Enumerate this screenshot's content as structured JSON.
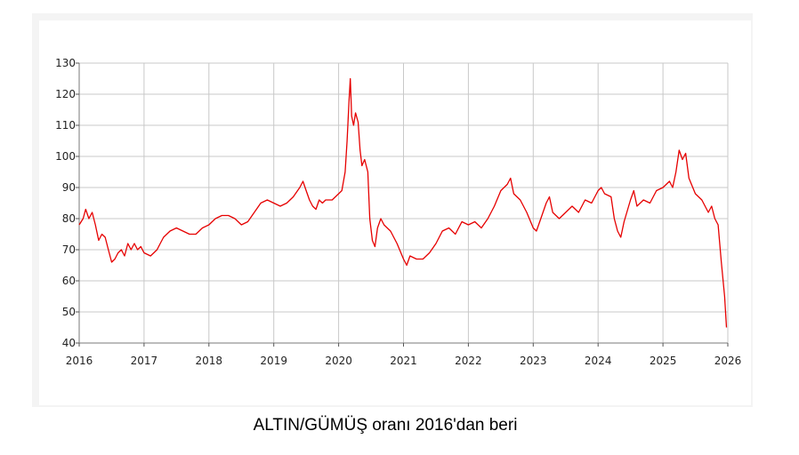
{
  "caption": "ALTIN/GÜMÜŞ oranı 2016'dan beri",
  "chart_data": {
    "type": "line",
    "title": "",
    "xlabel": "",
    "ylabel": "",
    "xlim": [
      2016,
      2026
    ],
    "ylim": [
      40,
      130
    ],
    "x_ticks": [
      2016,
      2017,
      2018,
      2019,
      2020,
      2021,
      2022,
      2023,
      2024,
      2025,
      2026
    ],
    "y_ticks": [
      40,
      50,
      60,
      70,
      80,
      90,
      100,
      110,
      120,
      130
    ],
    "grid": true,
    "line_color": "#e60000",
    "series": [
      {
        "name": "",
        "points": [
          [
            2016.0,
            78
          ],
          [
            2016.06,
            80
          ],
          [
            2016.1,
            83
          ],
          [
            2016.15,
            80
          ],
          [
            2016.2,
            82
          ],
          [
            2016.25,
            78
          ],
          [
            2016.3,
            73
          ],
          [
            2016.35,
            75
          ],
          [
            2016.4,
            74
          ],
          [
            2016.45,
            70
          ],
          [
            2016.5,
            66
          ],
          [
            2016.55,
            67
          ],
          [
            2016.6,
            69
          ],
          [
            2016.65,
            70
          ],
          [
            2016.7,
            68
          ],
          [
            2016.75,
            72
          ],
          [
            2016.8,
            70
          ],
          [
            2016.85,
            72
          ],
          [
            2016.9,
            70
          ],
          [
            2016.95,
            71
          ],
          [
            2017.0,
            69
          ],
          [
            2017.1,
            68
          ],
          [
            2017.2,
            70
          ],
          [
            2017.25,
            72
          ],
          [
            2017.3,
            74
          ],
          [
            2017.4,
            76
          ],
          [
            2017.5,
            77
          ],
          [
            2017.6,
            76
          ],
          [
            2017.7,
            75
          ],
          [
            2017.8,
            75
          ],
          [
            2017.9,
            77
          ],
          [
            2018.0,
            78
          ],
          [
            2018.1,
            80
          ],
          [
            2018.2,
            81
          ],
          [
            2018.3,
            81
          ],
          [
            2018.4,
            80
          ],
          [
            2018.5,
            78
          ],
          [
            2018.6,
            79
          ],
          [
            2018.7,
            82
          ],
          [
            2018.8,
            85
          ],
          [
            2018.9,
            86
          ],
          [
            2019.0,
            85
          ],
          [
            2019.1,
            84
          ],
          [
            2019.2,
            85
          ],
          [
            2019.3,
            87
          ],
          [
            2019.4,
            90
          ],
          [
            2019.45,
            92
          ],
          [
            2019.5,
            89
          ],
          [
            2019.55,
            86
          ],
          [
            2019.6,
            84
          ],
          [
            2019.65,
            83
          ],
          [
            2019.7,
            86
          ],
          [
            2019.75,
            85
          ],
          [
            2019.8,
            86
          ],
          [
            2019.9,
            86
          ],
          [
            2020.0,
            88
          ],
          [
            2020.05,
            89
          ],
          [
            2020.1,
            95
          ],
          [
            2020.13,
            105
          ],
          [
            2020.16,
            118
          ],
          [
            2020.18,
            125
          ],
          [
            2020.2,
            113
          ],
          [
            2020.23,
            110
          ],
          [
            2020.26,
            114
          ],
          [
            2020.3,
            111
          ],
          [
            2020.33,
            102
          ],
          [
            2020.36,
            97
          ],
          [
            2020.4,
            99
          ],
          [
            2020.45,
            95
          ],
          [
            2020.48,
            80
          ],
          [
            2020.52,
            73
          ],
          [
            2020.56,
            71
          ],
          [
            2020.6,
            77
          ],
          [
            2020.65,
            80
          ],
          [
            2020.7,
            78
          ],
          [
            2020.8,
            76
          ],
          [
            2020.9,
            72
          ],
          [
            2021.0,
            67
          ],
          [
            2021.05,
            65
          ],
          [
            2021.1,
            68
          ],
          [
            2021.2,
            67
          ],
          [
            2021.3,
            67
          ],
          [
            2021.4,
            69
          ],
          [
            2021.5,
            72
          ],
          [
            2021.6,
            76
          ],
          [
            2021.7,
            77
          ],
          [
            2021.8,
            75
          ],
          [
            2021.9,
            79
          ],
          [
            2022.0,
            78
          ],
          [
            2022.1,
            79
          ],
          [
            2022.2,
            77
          ],
          [
            2022.3,
            80
          ],
          [
            2022.4,
            84
          ],
          [
            2022.5,
            89
          ],
          [
            2022.6,
            91
          ],
          [
            2022.65,
            93
          ],
          [
            2022.7,
            88
          ],
          [
            2022.8,
            86
          ],
          [
            2022.9,
            82
          ],
          [
            2023.0,
            77
          ],
          [
            2023.05,
            76
          ],
          [
            2023.1,
            79
          ],
          [
            2023.2,
            85
          ],
          [
            2023.25,
            87
          ],
          [
            2023.3,
            82
          ],
          [
            2023.4,
            80
          ],
          [
            2023.5,
            82
          ],
          [
            2023.6,
            84
          ],
          [
            2023.7,
            82
          ],
          [
            2023.8,
            86
          ],
          [
            2023.9,
            85
          ],
          [
            2024.0,
            89
          ],
          [
            2024.05,
            90
          ],
          [
            2024.1,
            88
          ],
          [
            2024.2,
            87
          ],
          [
            2024.25,
            80
          ],
          [
            2024.3,
            76
          ],
          [
            2024.35,
            74
          ],
          [
            2024.4,
            79
          ],
          [
            2024.5,
            86
          ],
          [
            2024.55,
            89
          ],
          [
            2024.6,
            84
          ],
          [
            2024.7,
            86
          ],
          [
            2024.8,
            85
          ],
          [
            2024.9,
            89
          ],
          [
            2025.0,
            90
          ],
          [
            2025.1,
            92
          ],
          [
            2025.15,
            90
          ],
          [
            2025.2,
            95
          ],
          [
            2025.25,
            102
          ],
          [
            2025.3,
            99
          ],
          [
            2025.35,
            101
          ],
          [
            2025.4,
            93
          ],
          [
            2025.5,
            88
          ],
          [
            2025.6,
            86
          ],
          [
            2025.7,
            82
          ],
          [
            2025.75,
            84
          ],
          [
            2025.8,
            80
          ],
          [
            2025.85,
            78
          ],
          [
            2025.9,
            66
          ],
          [
            2025.95,
            55
          ],
          [
            2025.98,
            45
          ]
        ]
      }
    ]
  }
}
